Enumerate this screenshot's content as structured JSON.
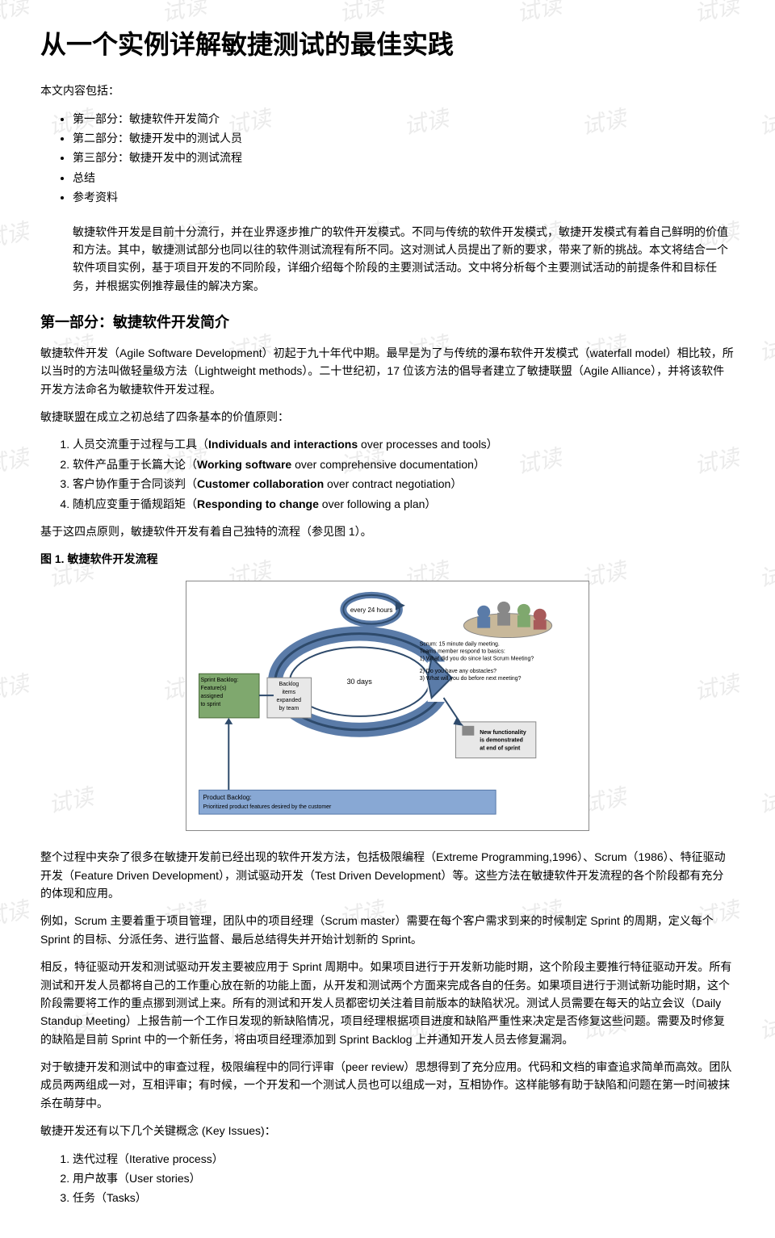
{
  "title": "从一个实例详解敏捷测试的最佳实践",
  "toc_intro": "本文内容包括：",
  "toc": [
    "第一部分：敏捷软件开发简介",
    "第二部分：敏捷开发中的测试人员",
    "第三部分：敏捷开发中的测试流程",
    "总结",
    "参考资料"
  ],
  "intro": "敏捷软件开发是目前十分流行，并在业界逐步推广的软件开发模式。不同与传统的软件开发模式，敏捷开发模式有着自己鲜明的价值和方法。其中，敏捷测试部分也同以往的软件测试流程有所不同。这对测试人员提出了新的要求，带来了新的挑战。本文将结合一个软件项目实例，基于项目开发的不同阶段，详细介绍每个阶段的主要测试活动。文中将分析每个主要测试活动的前提条件和目标任务，并根据实例推荐最佳的解决方案。",
  "section1_title": "第一部分：敏捷软件开发简介",
  "para1": "敏捷软件开发（Agile Software Development）初起于九十年代中期。最早是为了与传统的瀑布软件开发模式（waterfall model）相比较，所以当时的方法叫做轻量级方法（Lightweight methods）。二十世纪初，17 位该方法的倡导者建立了敏捷联盟（Agile Alliance），并将该软件开发方法命名为敏捷软件开发过程。",
  "para2": "敏捷联盟在成立之初总结了四条基本的价值原则：",
  "principles": [
    {
      "zh": "人员交流重于过程与工具（",
      "bold": "Individuals and interactions",
      "rest": " over processes and tools）"
    },
    {
      "zh": "软件产品重于长篇大论（",
      "bold": "Working software",
      "rest": " over comprehensive documentation）"
    },
    {
      "zh": "客户协作重于合同谈判（",
      "bold": "Customer collaboration",
      "rest": " over contract negotiation）"
    },
    {
      "zh": "随机应变重于循规蹈矩（",
      "bold": "Responding to change",
      "rest": " over following a plan）"
    }
  ],
  "para3": "基于这四点原则，敏捷软件开发有着自己独特的流程（参见图 1）。",
  "fig1_title": "图 1. 敏捷软件开发流程",
  "diagram": {
    "cycle_label": "every 24 hours",
    "days_label": "30 days",
    "sprint_backlog_title": "Sprint Backlog:",
    "sprint_backlog_lines": [
      "Feature(s)",
      "assigned",
      "to sprint"
    ],
    "backlog_items_title": "Backlog",
    "backlog_items_lines": [
      "items",
      "expanded",
      "by team"
    ],
    "product_backlog_title": "Product Backlog:",
    "product_backlog_text": "Prioritized product features desired by the customer",
    "scrum_meeting_title": "Scrum: 15 minute daily meeting.",
    "scrum_meeting_sub": "Teams member respond to basics:",
    "scrum_q1": "1) What did you do since last Scrum Meeting?",
    "scrum_q2": "2) Do you have any obstacles?",
    "scrum_q3": "3) What will you do before next meeting?",
    "demo_line1": "New functionality",
    "demo_line2": "is demonstrated",
    "demo_line3": "at end of sprint",
    "colors": {
      "cycle_ring": "#5a7ba8",
      "cycle_dark": "#2e4a6b",
      "sprint_box": "#7fa86e",
      "sprint_box_border": "#4a6b3a",
      "product_box": "#88a8d4",
      "product_box_border": "#5578a8",
      "backlog_box": "#e8e8e8",
      "backlog_border": "#888",
      "border": "#888",
      "text": "#000"
    }
  },
  "para4": "整个过程中夹杂了很多在敏捷开发前已经出现的软件开发方法，包括极限编程（Extreme Programming,1996）、Scrum（1986）、特征驱动开发（Feature Driven Development），测试驱动开发（Test Driven Development）等。这些方法在敏捷软件开发流程的各个阶段都有充分的体现和应用。",
  "para5": "例如，Scrum 主要着重于项目管理，团队中的项目经理（Scrum master）需要在每个客户需求到来的时候制定 Sprint 的周期，定义每个 Sprint 的目标、分派任务、进行监督、最后总结得失并开始计划新的 Sprint。",
  "para6": "相反，特征驱动开发和测试驱动开发主要被应用于 Sprint 周期中。如果项目进行于开发新功能时期，这个阶段主要推行特征驱动开发。所有测试和开发人员都将自己的工作重心放在新的功能上面，从开发和测试两个方面来完成各自的任务。如果项目进行于测试新功能时期，这个阶段需要将工作的重点挪到测试上来。所有的测试和开发人员都密切关注着目前版本的缺陷状况。测试人员需要在每天的站立会议（Daily Standup Meeting）上报告前一个工作日发现的新缺陷情况，项目经理根据项目进度和缺陷严重性来决定是否修复这些问题。需要及时修复的缺陷是目前 Sprint 中的一个新任务，将由项目经理添加到 Sprint Backlog 上并通知开发人员去修复漏洞。",
  "para7": "对于敏捷开发和测试中的审查过程，极限编程中的同行评审（peer review）思想得到了充分应用。代码和文档的审查追求简单而高效。团队成员两两组成一对，互相评审；有时候，一个开发和一个测试人员也可以组成一对，互相协作。这样能够有助于缺陷和问题在第一时间被抹杀在萌芽中。",
  "para8": "敏捷开发还有以下几个关键概念 (Key Issues)：",
  "key_issues": [
    "迭代过程（Iterative process）",
    "用户故事（User stories）",
    "任务（Tasks）"
  ],
  "watermark_text": "试读"
}
